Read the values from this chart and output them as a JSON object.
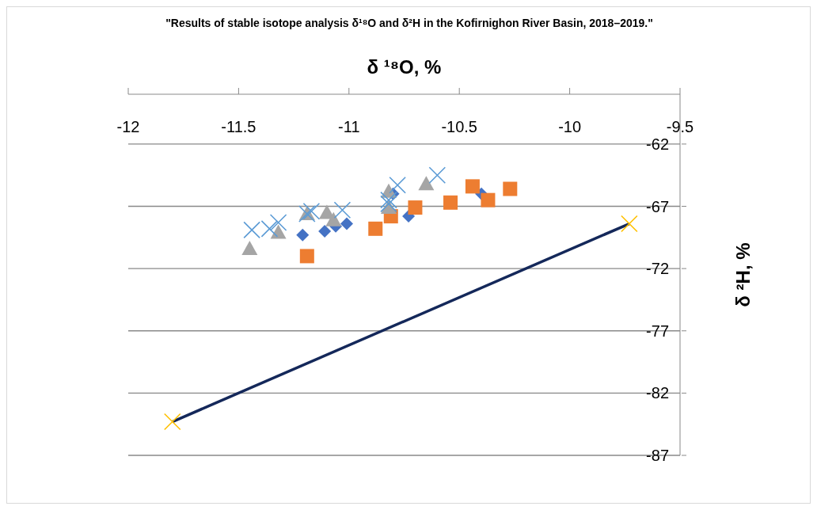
{
  "chart_data": {
    "type": "scatter",
    "title": "\"Results of stable isotope analysis  δ¹⁸O and δ²H in the Kofirnighon River Basin, 2018–2019.\"",
    "xlabel": "δ ¹⁸O, %",
    "ylabel": "δ ²H, %",
    "xlim": [
      -12,
      -9.5
    ],
    "xticks": [
      -12,
      -11.5,
      -11,
      -10.5,
      -10,
      -9.5
    ],
    "ylim": [
      -87,
      -58
    ],
    "yticks": [
      -87,
      -82,
      -77,
      -72,
      -67,
      -62
    ],
    "grid": "y",
    "legend": false,
    "series": [
      {
        "type": "scatter",
        "marker": "diamond",
        "color": "#4472c4",
        "x": [
          -11.21,
          -11.11,
          -11.06,
          -11.01,
          -10.8,
          -10.73,
          -10.4
        ],
        "values": [
          -69.3,
          -69.0,
          -68.6,
          -68.4,
          -66.0,
          -67.8,
          -66.0
        ]
      },
      {
        "type": "scatter",
        "marker": "square",
        "color": "#ed7d31",
        "x": [
          -11.19,
          -10.88,
          -10.81,
          -10.7,
          -10.54,
          -10.44,
          -10.37,
          -10.27
        ],
        "values": [
          -71.0,
          -68.8,
          -67.8,
          -67.1,
          -66.7,
          -65.4,
          -66.5,
          -65.6
        ]
      },
      {
        "type": "scatter",
        "marker": "triangle",
        "color": "#a5a5a5",
        "x": [
          -11.45,
          -11.32,
          -11.19,
          -11.1,
          -11.07,
          -10.82,
          -10.82,
          -10.65
        ],
        "values": [
          -70.4,
          -69.1,
          -67.6,
          -67.5,
          -68.1,
          -65.8,
          -67.1,
          -65.2
        ]
      },
      {
        "type": "scatter",
        "marker": "cross",
        "color": "#5b9bd5",
        "x": [
          -11.44,
          -11.36,
          -11.32,
          -11.19,
          -11.17,
          -11.03,
          -10.82,
          -10.82,
          -10.78,
          -10.6
        ],
        "values": [
          -68.9,
          -68.8,
          -68.3,
          -67.6,
          -67.4,
          -67.3,
          -66.5,
          -66.8,
          -65.3,
          -64.5
        ]
      },
      {
        "type": "line",
        "marker": "none",
        "color": "#14285a",
        "x": [
          -11.8,
          -9.73
        ],
        "values": [
          -84.3,
          -68.4
        ]
      },
      {
        "type": "scatter",
        "marker": "cross",
        "color": "#ffc000",
        "x": [
          -11.8,
          -9.73
        ],
        "values": [
          -84.3,
          -68.4
        ]
      }
    ]
  }
}
